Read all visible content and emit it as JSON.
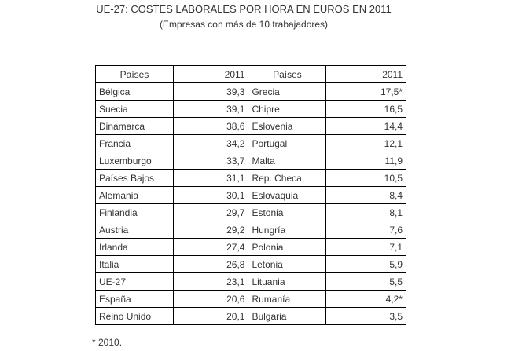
{
  "header": {
    "title": "UE-27: COSTES LABORALES POR HORA EN EUROS EN 2011",
    "subtitle": "(Empresas con más de 10 trabajadores)"
  },
  "table": {
    "columns": [
      "Países",
      "2011",
      "Países",
      "2011"
    ],
    "rows": [
      [
        "Bélgica",
        "39,3",
        "Grecia",
        "17,5*"
      ],
      [
        "Suecia",
        "39,1",
        "Chipre",
        "16,5"
      ],
      [
        "Dinamarca",
        "38,6",
        "Eslovenia",
        "14,4"
      ],
      [
        "Francia",
        "34,2",
        "Portugal",
        "12,1"
      ],
      [
        "Luxemburgo",
        "33,7",
        "Malta",
        "11,9"
      ],
      [
        "Países Bajos",
        "31,1",
        "Rep. Checa",
        "10,5"
      ],
      [
        "Alemania",
        "30,1",
        "Eslovaquia",
        "8,4"
      ],
      [
        "Finlandia",
        "29,7",
        "Estonia",
        "8,1"
      ],
      [
        "Austria",
        "29,2",
        "Hungría",
        "7,6"
      ],
      [
        "Irlanda",
        "27,4",
        "Polonia",
        "7,1"
      ],
      [
        "Italia",
        "26,8",
        "Letonia",
        "5,9"
      ],
      [
        "UE-27",
        "23,1",
        "Lituania",
        "5,5"
      ],
      [
        "España",
        "20,6",
        "Rumanía",
        "4,2*"
      ],
      [
        "Reino Unido",
        "20,1",
        "Bulgaria",
        "3,5"
      ]
    ]
  },
  "footnote": "* 2010."
}
